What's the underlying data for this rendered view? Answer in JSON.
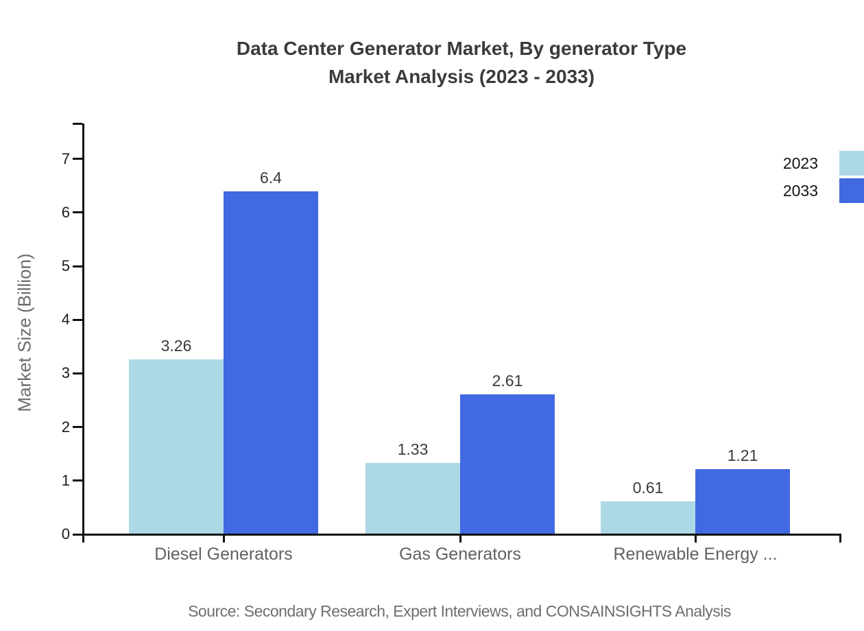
{
  "title": {
    "line1": "Data Center Generator Market, By generator Type",
    "line2": "Market Analysis (2023 - 2033)"
  },
  "source_note": "Source: Secondary Research, Expert Interviews, and CONSAINSIGHTS Analysis",
  "chart_data": {
    "type": "bar",
    "categories": [
      "Diesel Generators",
      "Gas Generators",
      "Renewable Energy ..."
    ],
    "series": [
      {
        "name": "2023",
        "color": "#ADD8E6",
        "values": [
          3.26,
          1.33,
          0.61
        ]
      },
      {
        "name": "2033",
        "color": "#4169E1",
        "values": [
          6.4,
          2.61,
          1.21
        ]
      }
    ],
    "ylabel": "Market Size (Billion)",
    "xlabel": "",
    "yticks": [
      0,
      1,
      2,
      3,
      4,
      5,
      6,
      7
    ],
    "ylim": [
      0,
      7.66
    ],
    "grid": false,
    "legend_position": "top-right",
    "value_labels_shown": true,
    "axis_color": "#111111",
    "background_color": "#ffffff"
  }
}
